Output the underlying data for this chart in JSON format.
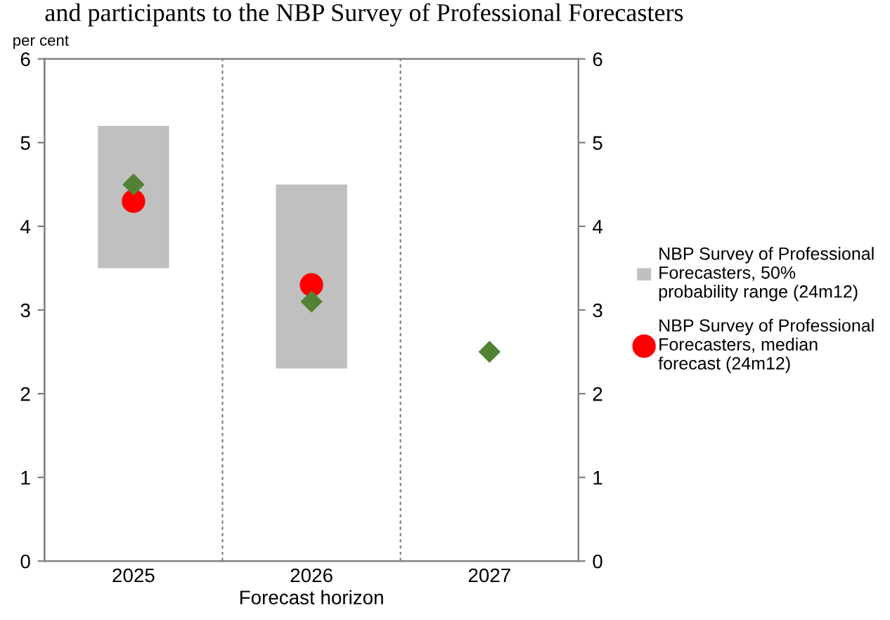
{
  "chart_data": {
    "type": "bar",
    "title": "and participants to the NBP Survey of Professional Forecasters",
    "ylabel": "per cent",
    "xlabel": "Forecast horizon",
    "categories": [
      "2025",
      "2026",
      "2027"
    ],
    "series": [
      {
        "name": "NBP Survey of Professional Forecasters, 50% probability range (24m12)",
        "color": "#c0c0c0",
        "values": [
          1.7,
          2.2,
          null
        ],
        "base": [
          3.5,
          2.3,
          null
        ]
      },
      {
        "type": "scatter",
        "name": "NBP Survey of Professional Forecasters, median forecast (24m12)",
        "color": "#ff0000",
        "marker": "circle",
        "values": [
          4.3,
          3.3,
          null
        ]
      },
      {
        "type": "scatter",
        "color": "#548235",
        "marker": "diamond",
        "values": [
          4.5,
          3.1,
          2.5
        ]
      }
    ],
    "ylim": [
      0,
      6
    ],
    "yticks": [
      0,
      1,
      2,
      3,
      4,
      5,
      6
    ],
    "y2lim": [
      0,
      6
    ],
    "y2ticks": [
      0,
      1,
      2,
      3,
      4,
      5,
      6
    ],
    "grid": "x",
    "legend": "right"
  }
}
